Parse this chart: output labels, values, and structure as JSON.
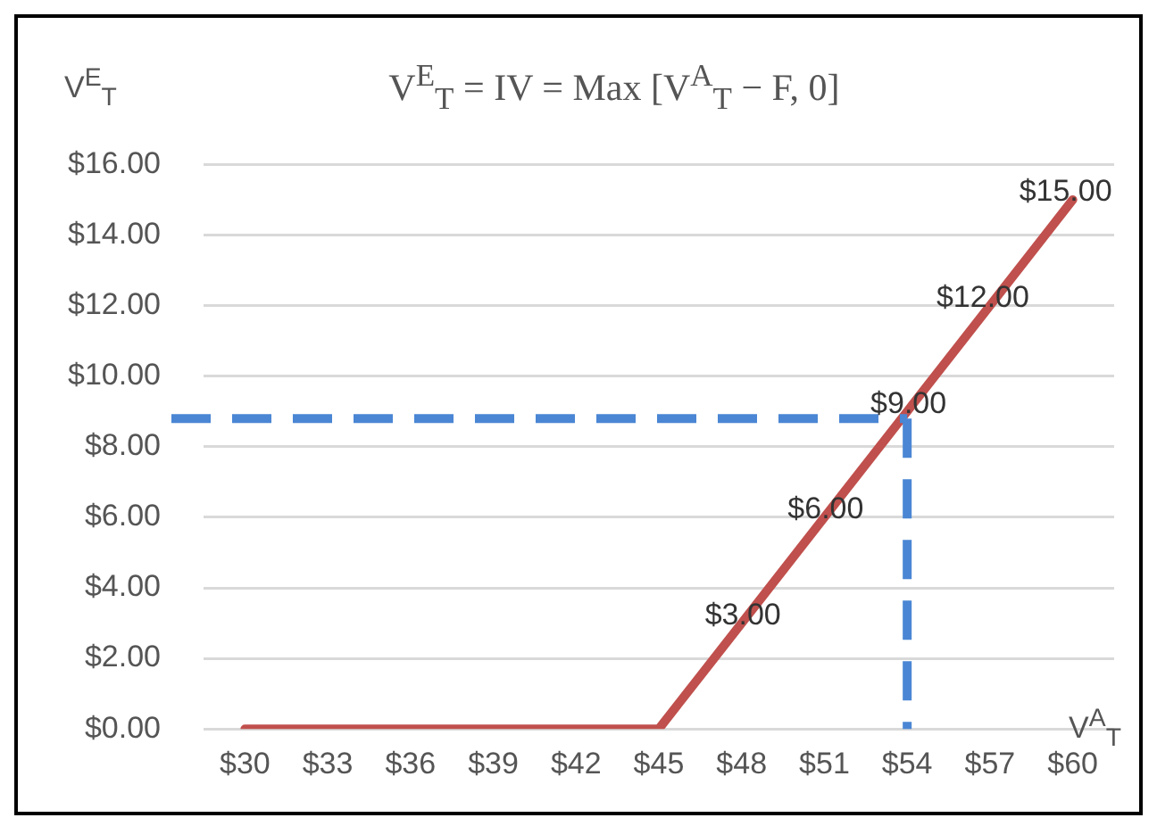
{
  "chart_data": {
    "type": "line",
    "title": "V$^{E}$$_{T}$ = IV = Max [V$^{A}$$_{T}$ − F, 0]",
    "ylabel": "V$^{E}$$_{T}$",
    "xlabel": "V$^{A}$$_{T}$",
    "categories": [
      "$30",
      "$33",
      "$36",
      "$39",
      "$42",
      "$45",
      "$48",
      "$51",
      "$54",
      "$57",
      "$60"
    ],
    "series": [
      {
        "color": "#c0504d",
        "values": [
          0,
          0,
          0,
          0,
          0,
          0,
          3,
          6,
          9,
          12,
          15
        ],
        "value_labels": [
          null,
          null,
          null,
          null,
          null,
          null,
          "$3.00",
          "$6.00",
          "$9.00",
          "$12.00",
          "$15.00"
        ]
      }
    ],
    "ylim": [
      0,
      16
    ],
    "yticks": [
      {
        "value": 0,
        "label": "$0.00"
      },
      {
        "value": 2,
        "label": "$2.00"
      },
      {
        "value": 4,
        "label": "$4.00"
      },
      {
        "value": 6,
        "label": "$6.00"
      },
      {
        "value": 8,
        "label": "$8.00"
      },
      {
        "value": 10,
        "label": "$10.00"
      },
      {
        "value": 12,
        "label": "$12.00"
      },
      {
        "value": 14,
        "label": "$14.00"
      },
      {
        "value": 16,
        "label": "$16.00"
      }
    ],
    "ref_lines": [
      {
        "axis": "y",
        "value": 8.8,
        "color": "#4a86d4",
        "line_style": "dashed"
      },
      {
        "axis": "x",
        "value": "$54",
        "color": "#4a86d4",
        "line_style": "dashed"
      }
    ],
    "grid": "y",
    "legend": false,
    "marker": "none",
    "line_style": "solid"
  }
}
